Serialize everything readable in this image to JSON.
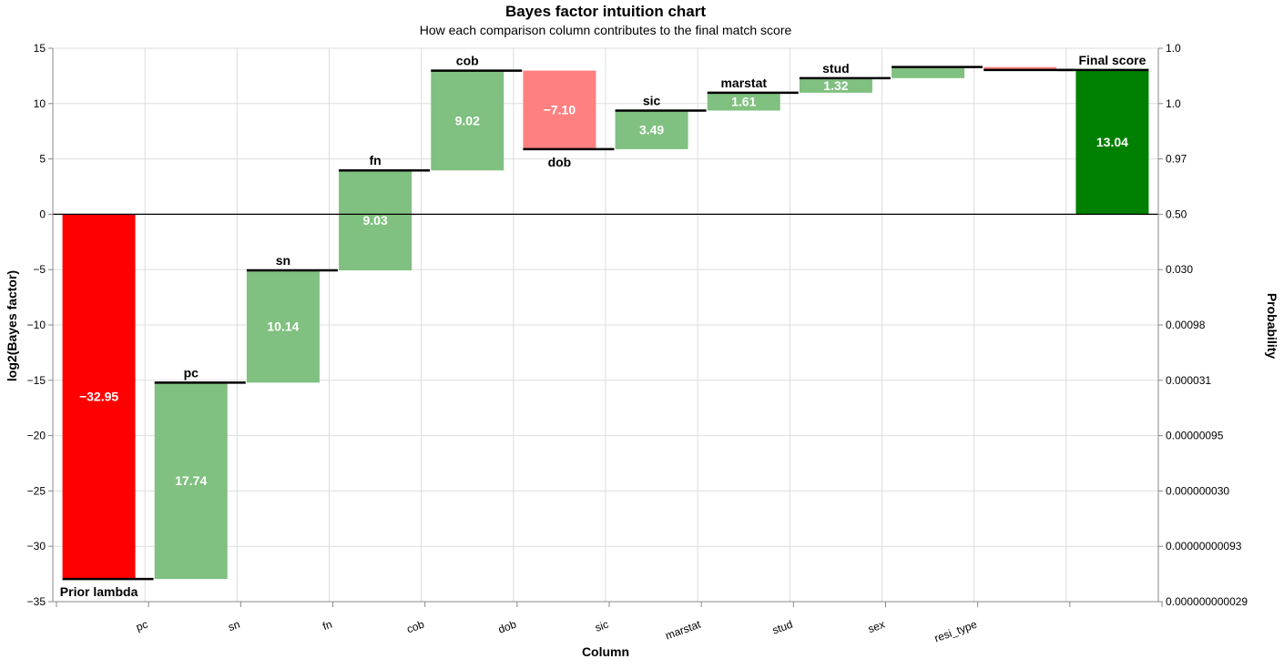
{
  "chart_data": {
    "type": "bar",
    "subtype": "waterfall",
    "title": "Bayes factor intuition chart",
    "subtitle": "How each comparison column contributes to the final match score",
    "xlabel": "Column",
    "ylabel": "log2(Bayes factor)",
    "y2label": "Probability",
    "ylim": [
      -35,
      15
    ],
    "y_ticks": [
      "15",
      "10",
      "5",
      "0",
      "−5",
      "−10",
      "−15",
      "−20",
      "−25",
      "−30",
      "−35"
    ],
    "y2_ticks": [
      "1.0",
      "1.0",
      "0.97",
      "0.50",
      "0.030",
      "0.00098",
      "0.000031",
      "0.00000095",
      "0.000000030",
      "0.00000000093",
      "0.000000000029"
    ],
    "grid": true,
    "categories": [
      "",
      "pc",
      "sn",
      "fn",
      "cob",
      "dob",
      "sic",
      "marstat",
      "stud",
      "sex",
      "resi_type",
      ""
    ],
    "bars": [
      {
        "column": "Prior lambda",
        "value": -32.95,
        "label": "−32.95",
        "start": 0,
        "end": -32.95,
        "kind": "prior",
        "color": "#ff0000",
        "column_label_position": "below"
      },
      {
        "column": "pc",
        "value": 17.74,
        "label": "17.74",
        "start": -32.95,
        "end": -15.21,
        "kind": "positive",
        "color": "#80c080",
        "column_label_position": "above"
      },
      {
        "column": "sn",
        "value": 10.14,
        "label": "10.14",
        "start": -15.21,
        "end": -5.07,
        "kind": "positive",
        "color": "#80c080",
        "column_label_position": "above"
      },
      {
        "column": "fn",
        "value": 9.03,
        "label": "9.03",
        "start": -5.07,
        "end": 3.96,
        "kind": "positive",
        "color": "#80c080",
        "column_label_position": "above"
      },
      {
        "column": "cob",
        "value": 9.02,
        "label": "9.02",
        "start": 3.96,
        "end": 12.98,
        "kind": "positive",
        "color": "#80c080",
        "column_label_position": "above"
      },
      {
        "column": "dob",
        "value": -7.1,
        "label": "−7.10",
        "start": 12.98,
        "end": 5.88,
        "kind": "negative",
        "color": "#ff8080",
        "column_label_position": "below"
      },
      {
        "column": "sic",
        "value": 3.49,
        "label": "3.49",
        "start": 5.88,
        "end": 9.37,
        "kind": "positive",
        "color": "#80c080",
        "column_label_position": "above"
      },
      {
        "column": "marstat",
        "value": 1.61,
        "label": "1.61",
        "start": 9.37,
        "end": 10.98,
        "kind": "positive",
        "color": "#80c080",
        "column_label_position": "above"
      },
      {
        "column": "stud",
        "value": 1.32,
        "label": "1.32",
        "start": 10.98,
        "end": 12.3,
        "kind": "positive",
        "color": "#80c080",
        "column_label_position": "above"
      },
      {
        "column": "sex",
        "value": 1.0,
        "label": "",
        "start": 12.3,
        "end": 13.3,
        "kind": "positive",
        "color": "#80c080",
        "column_label_position": "none"
      },
      {
        "column": "resi_type",
        "value": -0.26,
        "label": "",
        "start": 13.3,
        "end": 13.04,
        "kind": "negative",
        "color": "#ff8080",
        "column_label_position": "none"
      },
      {
        "column": "Final score",
        "value": 13.04,
        "label": "13.04",
        "start": 0,
        "end": 13.04,
        "kind": "final",
        "color": "#008000",
        "column_label_position": "above"
      }
    ]
  }
}
